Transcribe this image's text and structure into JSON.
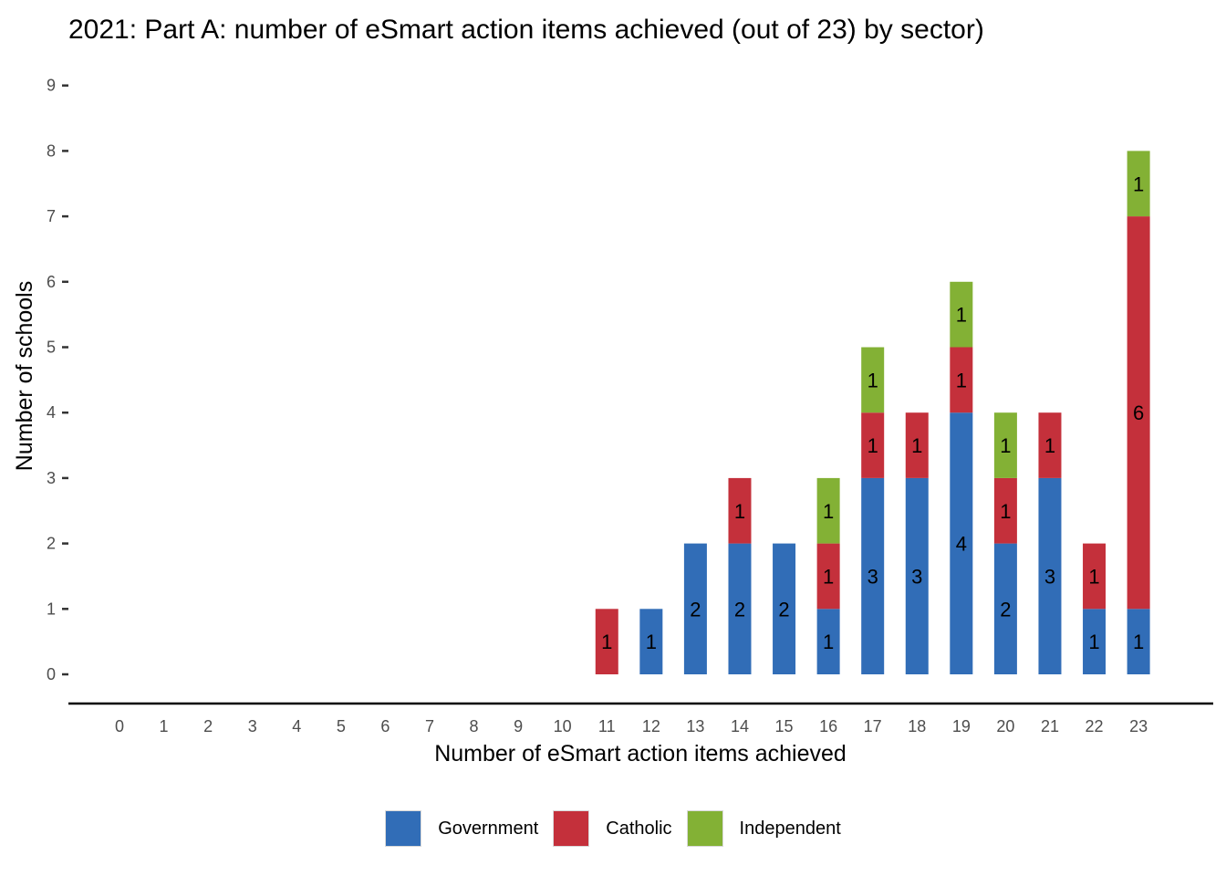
{
  "chart_data": {
    "type": "bar",
    "stacked": true,
    "title": "2021: Part A: number of eSmart action items achieved (out of 23) by sector)",
    "xlabel": "Number of eSmart action items achieved",
    "ylabel": "Number of schools",
    "categories": [
      "0",
      "1",
      "2",
      "3",
      "4",
      "5",
      "6",
      "7",
      "8",
      "9",
      "10",
      "11",
      "12",
      "13",
      "14",
      "15",
      "16",
      "17",
      "18",
      "19",
      "20",
      "21",
      "22",
      "23"
    ],
    "ylim": [
      0,
      9
    ],
    "yticks": [
      "0",
      "1",
      "2",
      "3",
      "4",
      "5",
      "6",
      "7",
      "8",
      "9"
    ],
    "grid": false,
    "legend_position": "bottom",
    "series": [
      {
        "name": "Government",
        "color": "#316DB7",
        "values": [
          0,
          0,
          0,
          0,
          0,
          0,
          0,
          0,
          0,
          0,
          0,
          0,
          1,
          2,
          2,
          2,
          1,
          3,
          3,
          4,
          2,
          3,
          1,
          1
        ]
      },
      {
        "name": "Catholic",
        "color": "#C4303B",
        "values": [
          0,
          0,
          0,
          0,
          0,
          0,
          0,
          0,
          0,
          0,
          0,
          1,
          0,
          0,
          1,
          0,
          1,
          1,
          1,
          1,
          1,
          1,
          1,
          6
        ]
      },
      {
        "name": "Independent",
        "color": "#83B135",
        "values": [
          0,
          0,
          0,
          0,
          0,
          0,
          0,
          0,
          0,
          0,
          0,
          0,
          0,
          0,
          0,
          0,
          1,
          1,
          0,
          1,
          1,
          0,
          0,
          1
        ]
      }
    ]
  }
}
